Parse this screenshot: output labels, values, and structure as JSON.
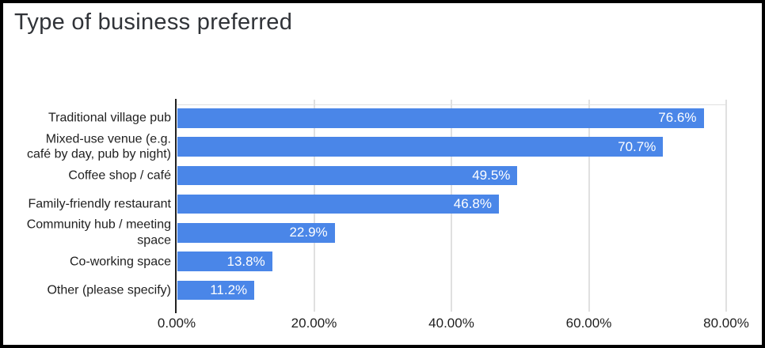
{
  "title": "Type of business preferred",
  "chart_data": {
    "type": "bar",
    "orientation": "horizontal",
    "title": "Type of business preferred",
    "categories": [
      "Traditional village pub",
      "Mixed-use venue (e.g. café by day, pub by night)",
      "Coffee shop / café",
      "Family-friendly restaurant",
      "Community hub / meeting space",
      "Co-working space",
      "Other (please specify)"
    ],
    "category_label_lines": [
      [
        "Traditional village pub"
      ],
      [
        "Mixed-use venue (e.g.",
        "café by day, pub by night)"
      ],
      [
        "Coffee shop / café"
      ],
      [
        "Family-friendly restaurant"
      ],
      [
        "Community hub / meeting",
        "space"
      ],
      [
        "Co-working space"
      ],
      [
        "Other (please specify)"
      ]
    ],
    "values": [
      76.6,
      70.7,
      49.5,
      46.8,
      22.9,
      13.8,
      11.2
    ],
    "value_labels": [
      "76.6%",
      "70.7%",
      "49.5%",
      "46.8%",
      "22.9%",
      "13.8%",
      "11.2%"
    ],
    "xlim": [
      0,
      80
    ],
    "x_ticks": {
      "values": [
        0,
        20,
        40,
        60,
        80
      ],
      "labels": [
        "0.00%",
        "20.00%",
        "40.00%",
        "60.00%",
        "80.00%"
      ]
    },
    "grid": true,
    "legend": "none",
    "colors": {
      "bar": "#4a86e8",
      "value_label": "#ffffff",
      "gridline": "#e0e0e0",
      "axis_line": "#212121",
      "text": "#1f1f1f",
      "title": "#303338",
      "background": "#ffffff",
      "frame_border": "#000000"
    }
  }
}
